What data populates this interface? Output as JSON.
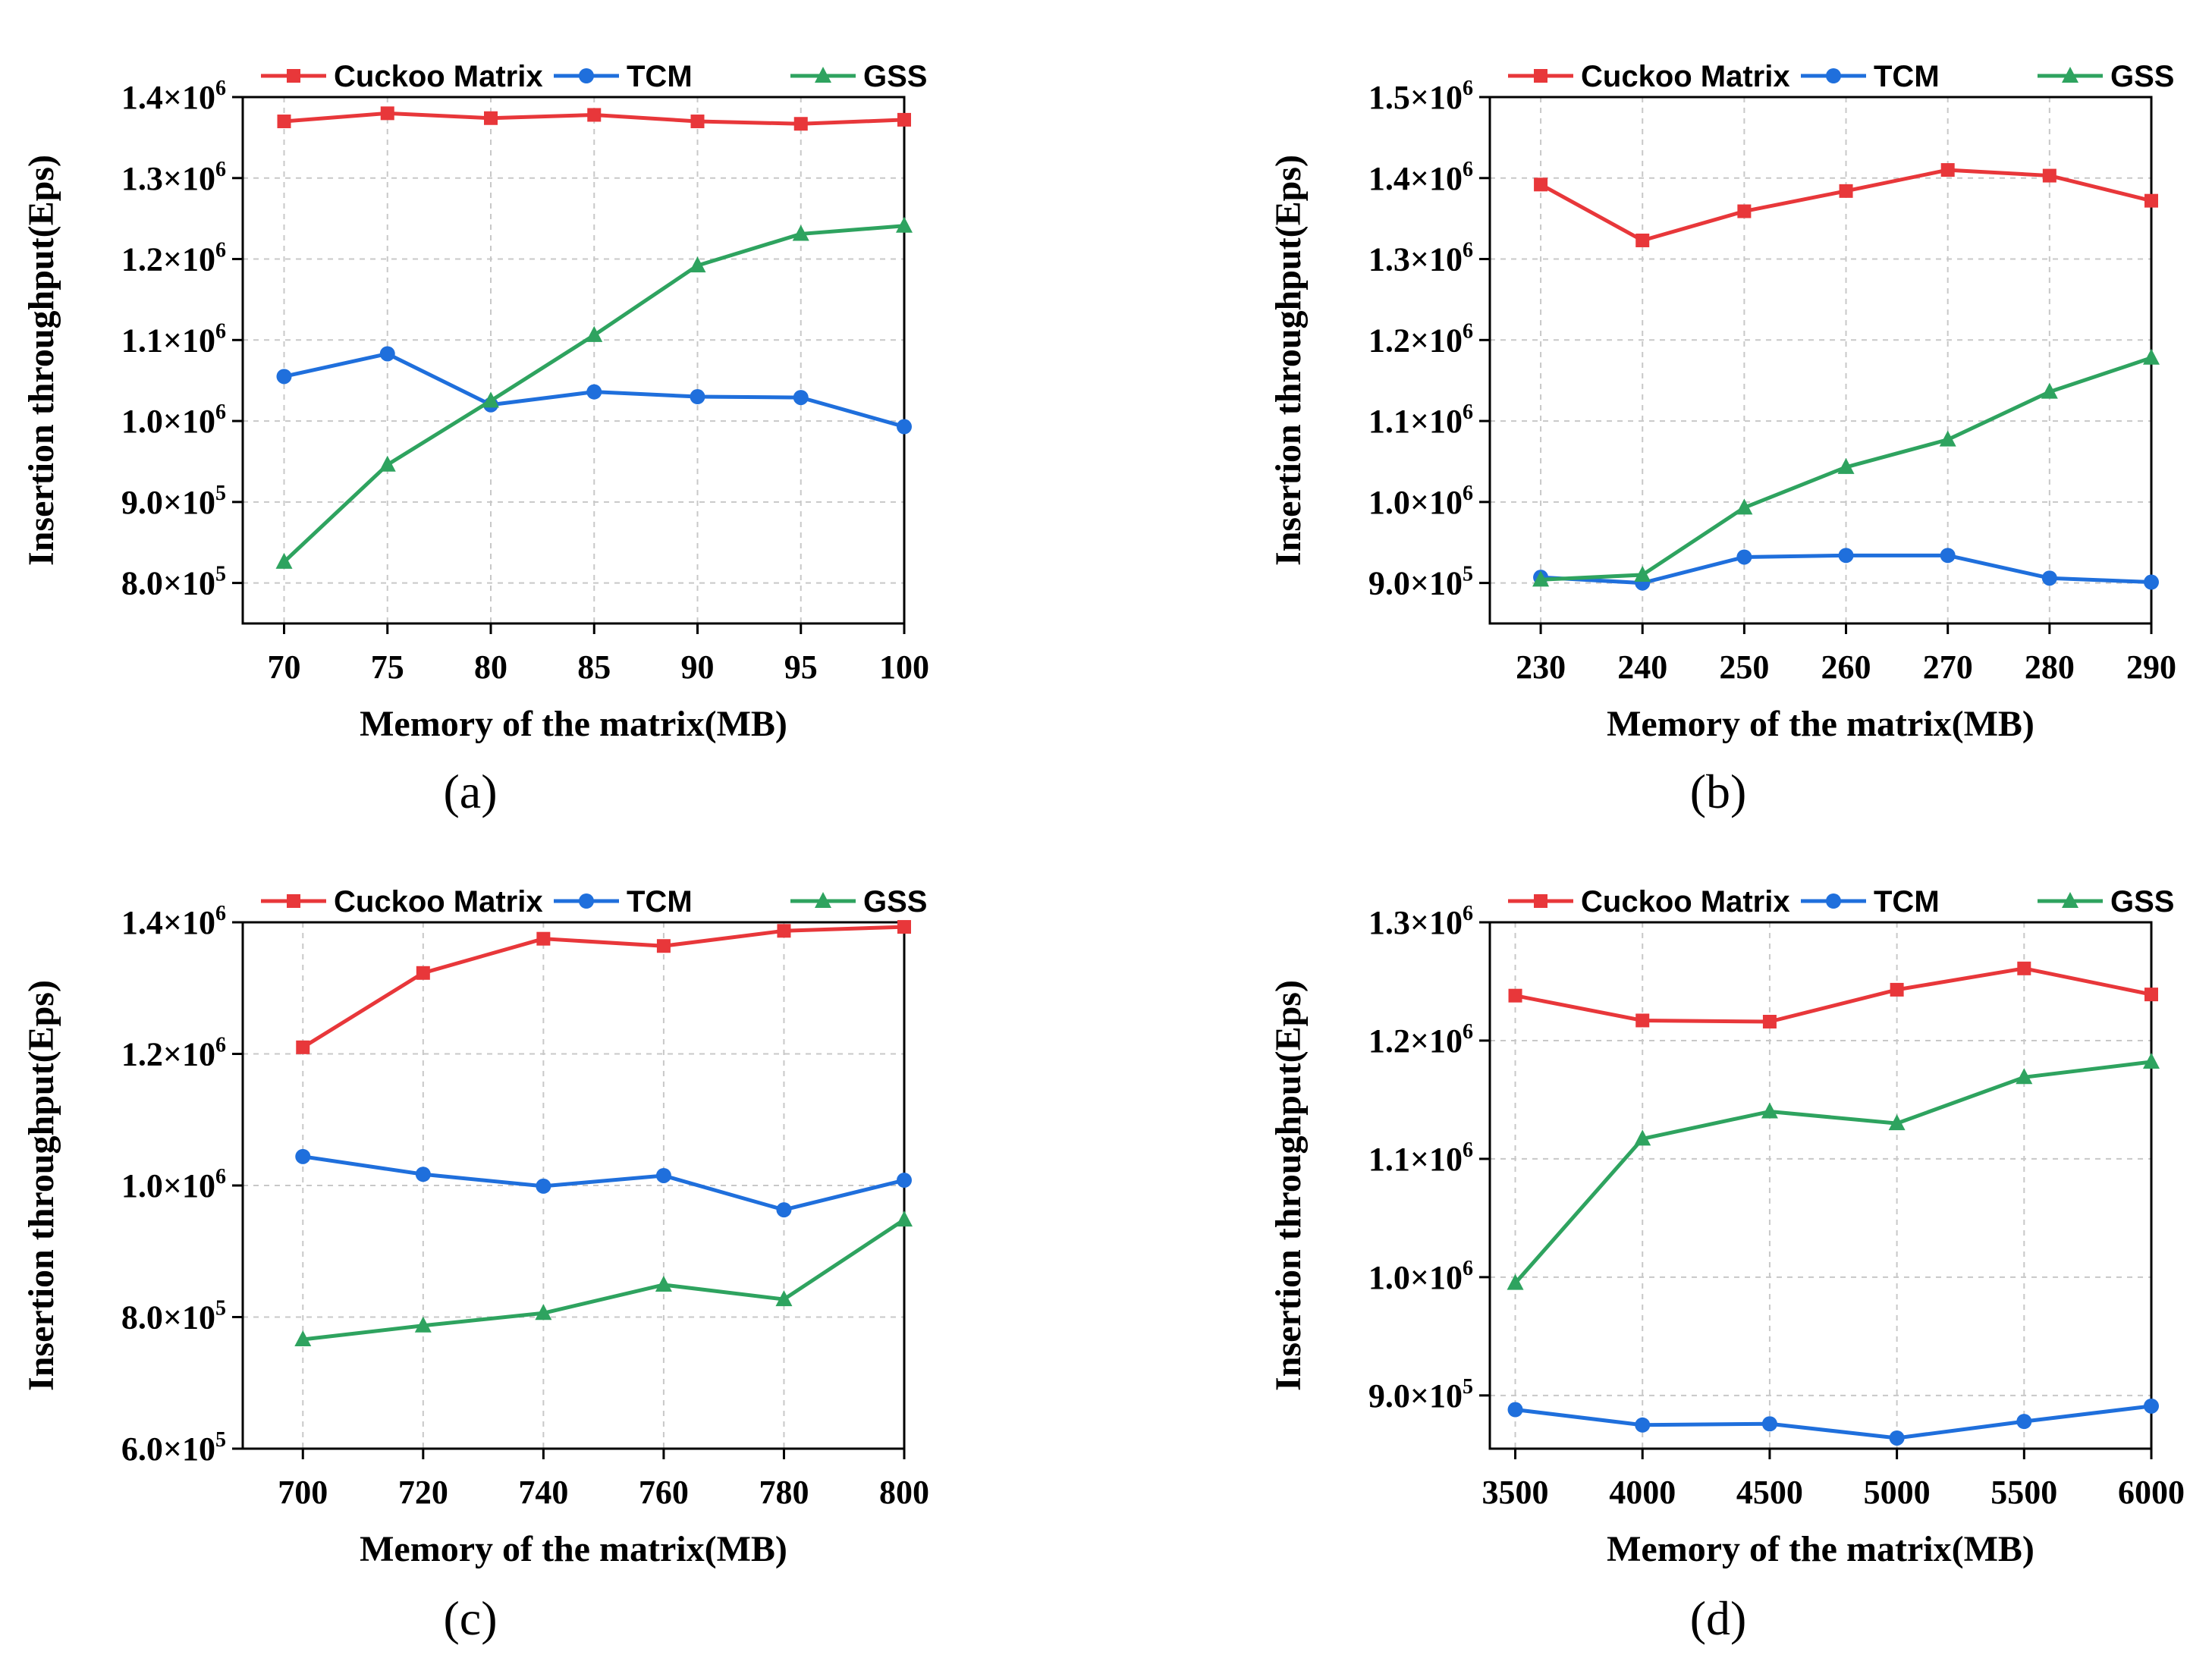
{
  "chart_data": [
    {
      "type": "line",
      "panel_label": "(a)",
      "xlabel": "Memory of the matrix(MB)",
      "ylabel": "Insertion throughput(Eps)",
      "x": [
        70,
        75,
        80,
        85,
        90,
        95,
        100
      ],
      "x_ticks": [
        70,
        75,
        80,
        85,
        90,
        95,
        100
      ],
      "xlim": [
        68,
        100
      ],
      "y_ticks": [
        {
          "mant": "8.0",
          "exp": "5",
          "value": 800000
        },
        {
          "mant": "9.0",
          "exp": "5",
          "value": 900000
        },
        {
          "mant": "1.0",
          "exp": "6",
          "value": 1000000
        },
        {
          "mant": "1.1",
          "exp": "6",
          "value": 1100000
        },
        {
          "mant": "1.2",
          "exp": "6",
          "value": 1200000
        },
        {
          "mant": "1.3",
          "exp": "6",
          "value": 1300000
        },
        {
          "mant": "1.4",
          "exp": "6",
          "value": 1400000
        }
      ],
      "ylim": [
        750000,
        1400000
      ],
      "grid": true,
      "legend_position": "top",
      "series": [
        {
          "name": "Cuckoo Matrix",
          "color": "#e8373a",
          "marker": "square",
          "values": [
            1370000,
            1380000,
            1374000,
            1378000,
            1370000,
            1367000,
            1372000
          ]
        },
        {
          "name": "TCM",
          "color": "#1f6fdc",
          "marker": "circle",
          "values": [
            1055000,
            1083000,
            1020000,
            1036000,
            1030000,
            1029000,
            993000
          ]
        },
        {
          "name": "GSS",
          "color": "#2ea35f",
          "marker": "triangle",
          "values": [
            826000,
            946000,
            1025000,
            1106000,
            1192000,
            1231000,
            1241000
          ]
        }
      ]
    },
    {
      "type": "line",
      "panel_label": "(b)",
      "xlabel": "Memory of the matrix(MB)",
      "ylabel": "Insertion throughput(Eps)",
      "x": [
        230,
        240,
        250,
        260,
        270,
        280,
        290
      ],
      "x_ticks": [
        230,
        240,
        250,
        260,
        270,
        280,
        290
      ],
      "xlim": [
        225,
        290
      ],
      "y_ticks": [
        {
          "mant": "9.0",
          "exp": "5",
          "value": 900000
        },
        {
          "mant": "1.0",
          "exp": "6",
          "value": 1000000
        },
        {
          "mant": "1.1",
          "exp": "6",
          "value": 1100000
        },
        {
          "mant": "1.2",
          "exp": "6",
          "value": 1200000
        },
        {
          "mant": "1.3",
          "exp": "6",
          "value": 1300000
        },
        {
          "mant": "1.4",
          "exp": "6",
          "value": 1400000
        },
        {
          "mant": "1.5",
          "exp": "6",
          "value": 1500000
        }
      ],
      "ylim": [
        850000,
        1500000
      ],
      "grid": true,
      "legend_position": "top",
      "series": [
        {
          "name": "Cuckoo Matrix",
          "color": "#e8373a",
          "marker": "square",
          "values": [
            1392000,
            1323000,
            1359000,
            1384000,
            1410000,
            1403000,
            1372000
          ]
        },
        {
          "name": "TCM",
          "color": "#1f6fdc",
          "marker": "circle",
          "values": [
            907000,
            900000,
            932000,
            934000,
            934000,
            906000,
            901000
          ]
        },
        {
          "name": "GSS",
          "color": "#2ea35f",
          "marker": "triangle",
          "values": [
            904000,
            910000,
            993000,
            1043000,
            1077000,
            1136000,
            1178000
          ]
        }
      ]
    },
    {
      "type": "line",
      "panel_label": "(c)",
      "xlabel": "Memory of the matrix(MB)",
      "ylabel": "Insertion throughput(Eps)",
      "x": [
        700,
        720,
        740,
        760,
        780,
        800
      ],
      "x_ticks": [
        700,
        720,
        740,
        760,
        780,
        800
      ],
      "xlim": [
        690,
        800
      ],
      "y_ticks": [
        {
          "mant": "6.0",
          "exp": "5",
          "value": 600000
        },
        {
          "mant": "8.0",
          "exp": "5",
          "value": 800000
        },
        {
          "mant": "1.0",
          "exp": "6",
          "value": 1000000
        },
        {
          "mant": "1.2",
          "exp": "6",
          "value": 1200000
        },
        {
          "mant": "1.4",
          "exp": "6",
          "value": 1400000
        }
      ],
      "ylim": [
        600000,
        1400000
      ],
      "grid": true,
      "legend_position": "top",
      "series": [
        {
          "name": "Cuckoo Matrix",
          "color": "#e8373a",
          "marker": "square",
          "values": [
            1210000,
            1323000,
            1375000,
            1364000,
            1387000,
            1393000
          ]
        },
        {
          "name": "TCM",
          "color": "#1f6fdc",
          "marker": "circle",
          "values": [
            1044000,
            1017000,
            999000,
            1015000,
            963000,
            1008000
          ]
        },
        {
          "name": "GSS",
          "color": "#2ea35f",
          "marker": "triangle",
          "values": [
            766000,
            787000,
            806000,
            849000,
            827000,
            948000
          ]
        }
      ]
    },
    {
      "type": "line",
      "panel_label": "(d)",
      "xlabel": "Memory of the matrix(MB)",
      "ylabel": "Insertion throughput(Eps)",
      "x": [
        3500,
        4000,
        4500,
        5000,
        5500,
        6000
      ],
      "x_ticks": [
        3500,
        4000,
        4500,
        5000,
        5500,
        6000
      ],
      "xlim": [
        3400,
        6000
      ],
      "y_ticks": [
        {
          "mant": "9.0",
          "exp": "5",
          "value": 900000
        },
        {
          "mant": "1.0",
          "exp": "6",
          "value": 1000000
        },
        {
          "mant": "1.1",
          "exp": "6",
          "value": 1100000
        },
        {
          "mant": "1.2",
          "exp": "6",
          "value": 1200000
        },
        {
          "mant": "1.3",
          "exp": "6",
          "value": 1300000
        }
      ],
      "ylim": [
        855000,
        1300000
      ],
      "grid": true,
      "legend_position": "top",
      "series": [
        {
          "name": "Cuckoo Matrix",
          "color": "#e8373a",
          "marker": "square",
          "values": [
            1238000,
            1217000,
            1216000,
            1243000,
            1261000,
            1239000
          ]
        },
        {
          "name": "TCM",
          "color": "#1f6fdc",
          "marker": "circle",
          "values": [
            888000,
            875000,
            876000,
            864000,
            878000,
            891000
          ]
        },
        {
          "name": "GSS",
          "color": "#2ea35f",
          "marker": "triangle",
          "values": [
            995000,
            1117000,
            1140000,
            1130000,
            1169000,
            1182000
          ]
        }
      ]
    }
  ]
}
